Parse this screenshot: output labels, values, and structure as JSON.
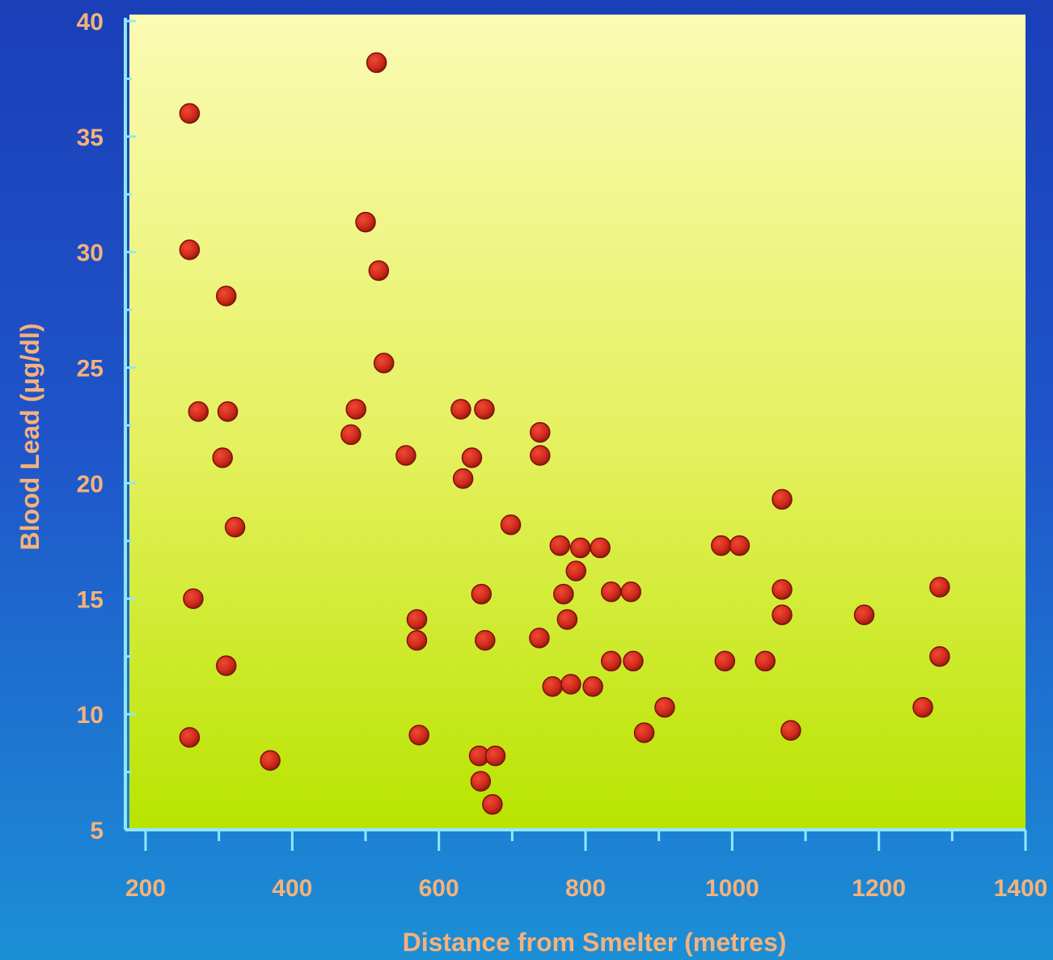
{
  "colors": {
    "marker": "#d22a1c",
    "marker_edge": "#7a1208",
    "axis": "#8fe8ff",
    "label": "#f4b27a",
    "plot_top": "#fbfbb4",
    "plot_bottom": "#b8e400"
  },
  "chart_data": {
    "type": "scatter",
    "title": "",
    "xlabel": "Distance from Smelter (metres)",
    "ylabel": "Blood Lead (μg/dl)",
    "xlim": [
      200,
      1400
    ],
    "ylim": [
      5,
      40
    ],
    "xticks": [
      200,
      400,
      600,
      800,
      1000,
      1200,
      1400
    ],
    "yticks": [
      5,
      10,
      15,
      20,
      25,
      30,
      35,
      40
    ],
    "grid": false,
    "legend": "none",
    "points": [
      {
        "x": 260,
        "y": 36.0
      },
      {
        "x": 260,
        "y": 30.1
      },
      {
        "x": 272,
        "y": 23.1
      },
      {
        "x": 265,
        "y": 15.0
      },
      {
        "x": 260,
        "y": 9.0
      },
      {
        "x": 310,
        "y": 28.1
      },
      {
        "x": 312,
        "y": 23.1
      },
      {
        "x": 305,
        "y": 21.1
      },
      {
        "x": 322,
        "y": 18.1
      },
      {
        "x": 310,
        "y": 12.1
      },
      {
        "x": 370,
        "y": 8.0
      },
      {
        "x": 515,
        "y": 38.2
      },
      {
        "x": 500,
        "y": 31.3
      },
      {
        "x": 518,
        "y": 29.2
      },
      {
        "x": 525,
        "y": 25.2
      },
      {
        "x": 487,
        "y": 23.2
      },
      {
        "x": 480,
        "y": 22.1
      },
      {
        "x": 555,
        "y": 21.2
      },
      {
        "x": 570,
        "y": 14.1
      },
      {
        "x": 570,
        "y": 13.2
      },
      {
        "x": 573,
        "y": 9.1
      },
      {
        "x": 630,
        "y": 23.2
      },
      {
        "x": 662,
        "y": 23.2
      },
      {
        "x": 645,
        "y": 21.1
      },
      {
        "x": 633,
        "y": 20.2
      },
      {
        "x": 698,
        "y": 18.2
      },
      {
        "x": 658,
        "y": 15.2
      },
      {
        "x": 663,
        "y": 13.2
      },
      {
        "x": 655,
        "y": 8.2
      },
      {
        "x": 677,
        "y": 8.2
      },
      {
        "x": 657,
        "y": 7.1
      },
      {
        "x": 673,
        "y": 6.1
      },
      {
        "x": 738,
        "y": 22.2
      },
      {
        "x": 738,
        "y": 21.2
      },
      {
        "x": 737,
        "y": 13.3
      },
      {
        "x": 765,
        "y": 17.3
      },
      {
        "x": 793,
        "y": 17.2
      },
      {
        "x": 820,
        "y": 17.2
      },
      {
        "x": 787,
        "y": 16.2
      },
      {
        "x": 770,
        "y": 15.2
      },
      {
        "x": 775,
        "y": 14.1
      },
      {
        "x": 755,
        "y": 11.2
      },
      {
        "x": 780,
        "y": 11.3
      },
      {
        "x": 810,
        "y": 11.2
      },
      {
        "x": 835,
        "y": 15.3
      },
      {
        "x": 862,
        "y": 15.3
      },
      {
        "x": 835,
        "y": 12.3
      },
      {
        "x": 865,
        "y": 12.3
      },
      {
        "x": 880,
        "y": 9.2
      },
      {
        "x": 908,
        "y": 10.3
      },
      {
        "x": 985,
        "y": 17.3
      },
      {
        "x": 1010,
        "y": 17.3
      },
      {
        "x": 990,
        "y": 12.3
      },
      {
        "x": 1045,
        "y": 12.3
      },
      {
        "x": 1068,
        "y": 19.3
      },
      {
        "x": 1068,
        "y": 15.4
      },
      {
        "x": 1068,
        "y": 14.3
      },
      {
        "x": 1080,
        "y": 9.3
      },
      {
        "x": 1180,
        "y": 14.3
      },
      {
        "x": 1260,
        "y": 10.3
      },
      {
        "x": 1283,
        "y": 15.5
      },
      {
        "x": 1283,
        "y": 12.5
      }
    ]
  }
}
